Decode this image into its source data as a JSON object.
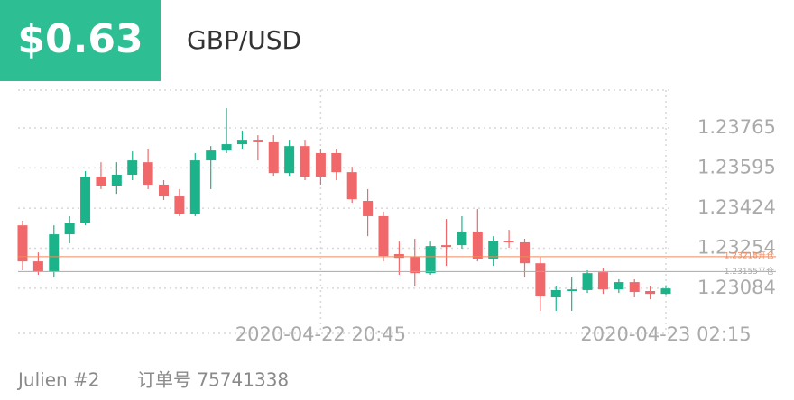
{
  "header": {
    "profit": "$0.63",
    "symbol": "GBP/USD"
  },
  "footer": {
    "account": "Julien #2",
    "order": "订单号 75741338"
  },
  "chart_data": {
    "type": "candlestick",
    "categories": [
      null,
      null,
      null,
      null,
      null,
      null,
      null,
      null,
      null,
      null,
      null,
      null,
      null,
      null,
      null,
      null,
      null,
      null,
      null,
      "2020-04-22 20:45",
      null,
      null,
      null,
      null,
      null,
      null,
      null,
      null,
      null,
      null,
      null,
      null,
      null,
      null,
      null,
      null,
      null,
      null,
      null,
      null,
      null,
      "2020-04-23 02:15"
    ],
    "open": [
      1.23351,
      1.23198,
      1.23156,
      1.23313,
      1.23363,
      1.23558,
      1.2352,
      1.23566,
      1.23619,
      1.23524,
      1.23474,
      1.23401,
      1.23627,
      1.23669,
      1.23696,
      1.23715,
      1.23704,
      1.23573,
      1.23688,
      1.23658,
      1.23658,
      1.23577,
      1.23455,
      1.2339,
      1.23229,
      1.23217,
      1.23148,
      1.23267,
      1.23267,
      1.23325,
      1.2321,
      1.23286,
      1.23279,
      1.2319,
      1.23045,
      1.23072,
      1.23076,
      1.23152,
      1.23079,
      1.2311,
      1.23072,
      1.2306
    ],
    "high": [
      1.23371,
      1.23236,
      1.23351,
      1.2339,
      1.23581,
      1.23619,
      1.23619,
      1.23665,
      1.23677,
      1.23543,
      1.23505,
      1.23658,
      1.23688,
      1.23849,
      1.23754,
      1.23734,
      1.23734,
      1.23715,
      1.23715,
      1.23677,
      1.23677,
      1.236,
      1.23505,
      1.23409,
      1.23282,
      1.23294,
      1.23282,
      1.23378,
      1.2339,
      1.2342,
      1.23305,
      1.23332,
      1.23294,
      1.23217,
      1.23091,
      1.23129,
      1.2316,
      1.23168,
      1.23122,
      1.23122,
      1.23091,
      1.23091
    ],
    "low": [
      1.2316,
      1.23141,
      1.23129,
      1.23275,
      1.23351,
      1.23505,
      1.23485,
      1.23543,
      1.23505,
      1.23459,
      1.2339,
      1.2339,
      1.23505,
      1.23658,
      1.23677,
      1.23627,
      1.23562,
      1.23562,
      1.23543,
      1.23524,
      1.23543,
      1.23447,
      1.23305,
      1.23198,
      1.23141,
      1.23091,
      1.23141,
      1.23179,
      1.23252,
      1.23198,
      1.23179,
      1.23256,
      1.23129,
      1.22988,
      1.22988,
      1.22988,
      1.23064,
      1.2306,
      1.23064,
      1.23045,
      1.23037,
      1.23053
    ],
    "close": [
      1.23198,
      1.23156,
      1.23313,
      1.23363,
      1.23558,
      1.2352,
      1.23566,
      1.23627,
      1.23524,
      1.23474,
      1.23401,
      1.23627,
      1.23669,
      1.23696,
      1.23715,
      1.23704,
      1.23573,
      1.23688,
      1.23558,
      1.23558,
      1.23577,
      1.23462,
      1.2339,
      1.23221,
      1.23213,
      1.23148,
      1.23263,
      1.23259,
      1.23325,
      1.2321,
      1.23286,
      1.23279,
      1.2319,
      1.23049,
      1.23076,
      1.23079,
      1.23148,
      1.23079,
      1.2311,
      1.23068,
      1.2306,
      1.23083
    ],
    "up_color": "#1db38a",
    "down_color": "#f0686a",
    "ylim": [
      1.22892,
      1.23926
    ],
    "yticks": [
      1.23084,
      1.23254,
      1.23424,
      1.23595,
      1.23765
    ],
    "grid": true,
    "reference_lines": [
      {
        "value": 1.23218,
        "label": "1.23218开仓",
        "color": "#ef8a5c"
      },
      {
        "value": 1.23155,
        "label": "1.23155平仓",
        "color": "#a8a8a8"
      }
    ]
  }
}
